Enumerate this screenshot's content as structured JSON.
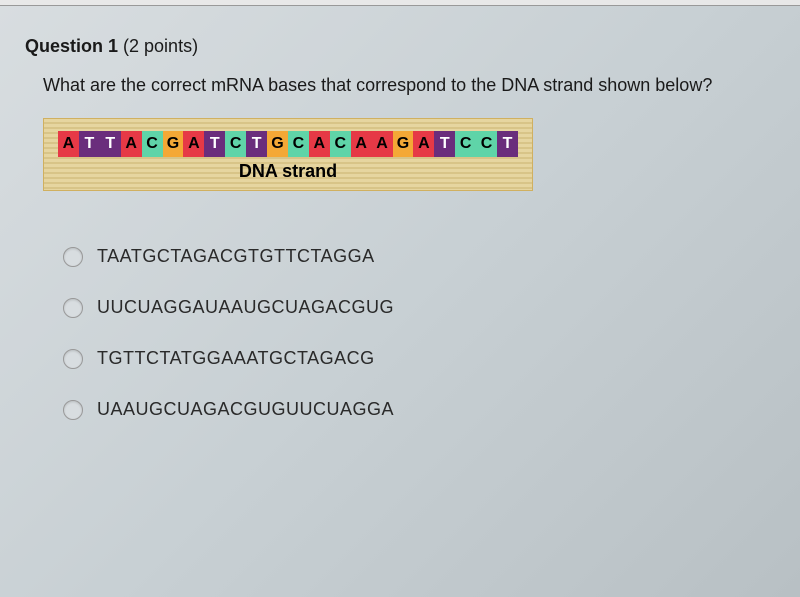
{
  "question": {
    "title": "Question 1",
    "points": "(2 points)",
    "text": "What are the correct mRNA bases that correspond to the DNA strand shown below?"
  },
  "dna": {
    "sequence": [
      "A",
      "T",
      "T",
      "A",
      "C",
      "G",
      "A",
      "T",
      "C",
      "T",
      "G",
      "C",
      "A",
      "C",
      "A",
      "A",
      "G",
      "A",
      "T",
      "C",
      "C",
      "T"
    ],
    "label": "DNA strand",
    "colors": {
      "A": "#e63946",
      "T": "#6a2d7c",
      "C": "#5fd4a8",
      "G": "#f4a836"
    },
    "text_colors": {
      "A": "#000000",
      "T": "#ffffff",
      "C": "#000000",
      "G": "#000000"
    },
    "container_bg_stripe1": "#e6d5a0",
    "container_bg_stripe2": "#d8c488",
    "container_border": "#d0b060"
  },
  "options": [
    {
      "label": "TAATGCTAGACGTGTTCTAGGA"
    },
    {
      "label": "UUCUAGGAUAAUGCUAGACGUG"
    },
    {
      "label": "TGTTCTATGGAAATGCTAGACG"
    },
    {
      "label": "UAAUGCUAGACGUGUUCUAGGA"
    }
  ],
  "styling": {
    "body_bg_gradient": [
      "#d8dde0",
      "#c8d0d4",
      "#b8c0c4"
    ],
    "question_fontsize": 18,
    "option_fontsize": 18,
    "base_width": 22,
    "base_height": 26,
    "radio_size": 20,
    "radio_bg": "#d8dde0",
    "radio_border": "#999999"
  }
}
